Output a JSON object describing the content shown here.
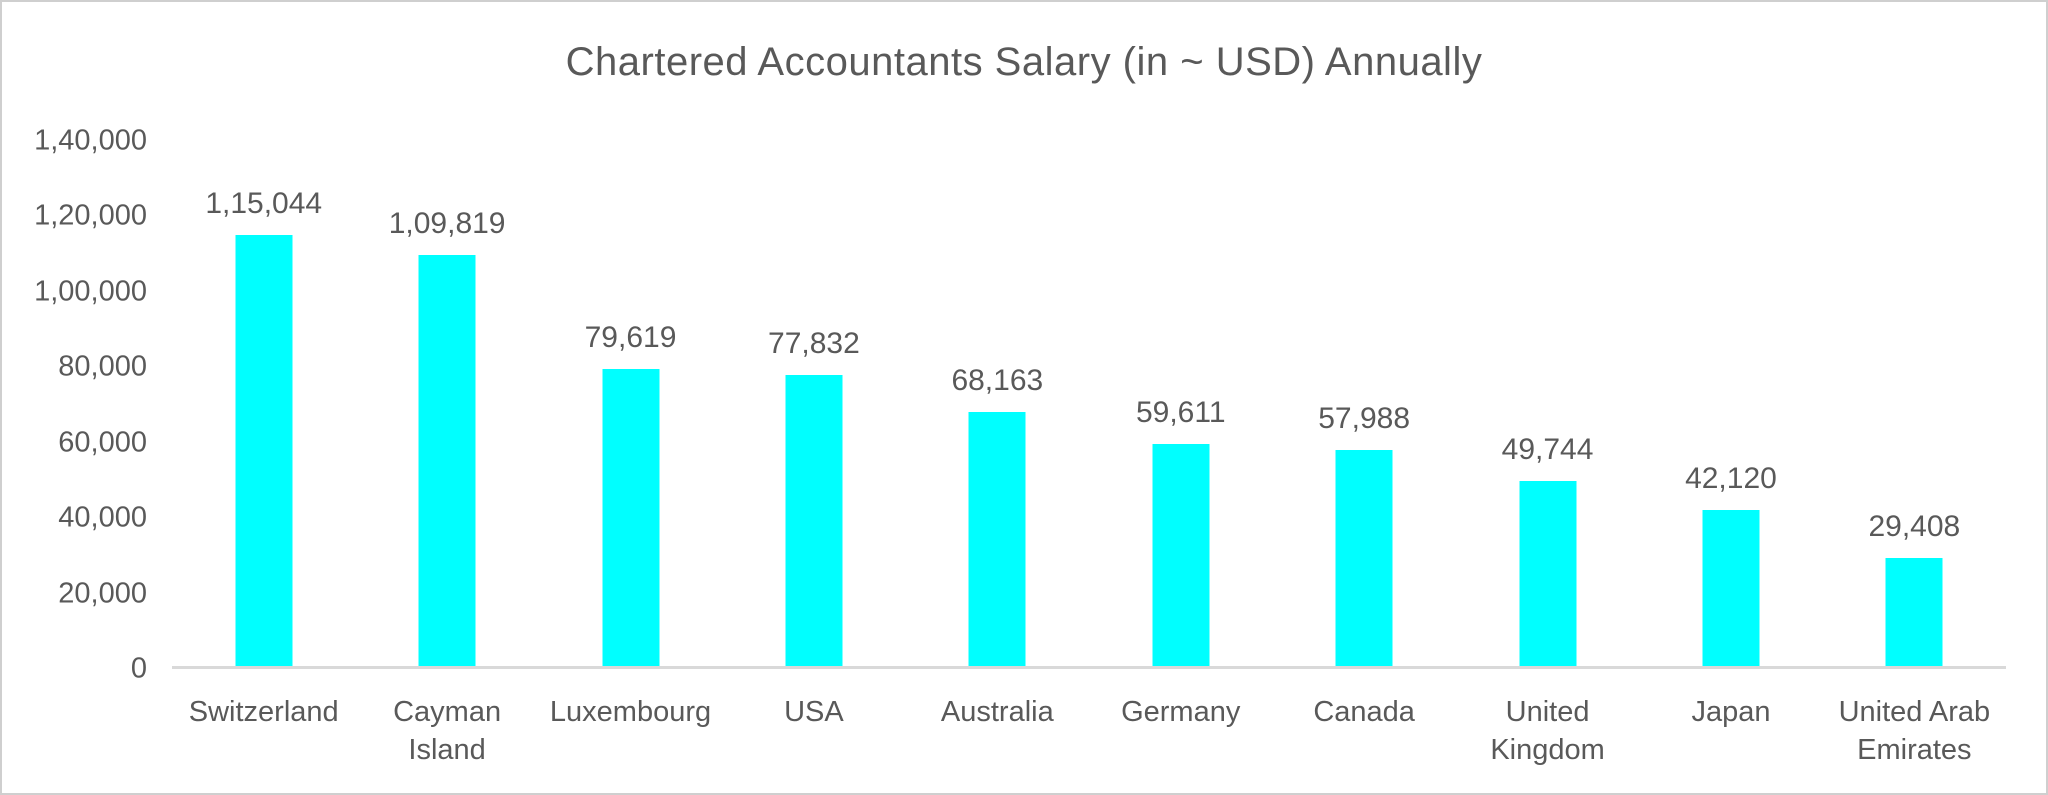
{
  "chart_data": {
    "type": "bar",
    "title": "Chartered Accountants Salary (in ~ USD) Annually",
    "categories": [
      "Switzerland",
      "Cayman Island",
      "Luxembourg",
      "USA",
      "Australia",
      "Germany",
      "Canada",
      "United Kingdom",
      "Japan",
      "United Arab Emirates"
    ],
    "values": [
      115044,
      109819,
      79619,
      77832,
      68163,
      59611,
      57988,
      49744,
      42120,
      29408
    ],
    "value_labels": [
      "1,15,044",
      "1,09,819",
      "79,619",
      "77,832",
      "68,163",
      "59,611",
      "57,988",
      "49,744",
      "42,120",
      "29,408"
    ],
    "xlabel": "",
    "ylabel": "",
    "ylim": [
      0,
      140000
    ],
    "y_ticks": [
      {
        "value": 0,
        "label": "0"
      },
      {
        "value": 20000,
        "label": "20,000"
      },
      {
        "value": 40000,
        "label": "40,000"
      },
      {
        "value": 60000,
        "label": "60,000"
      },
      {
        "value": 80000,
        "label": "80,000"
      },
      {
        "value": 100000,
        "label": "1,00,000"
      },
      {
        "value": 120000,
        "label": "1,20,000"
      },
      {
        "value": 140000,
        "label": "1,40,000"
      }
    ],
    "grid": false,
    "legend": false,
    "bar_color": "#00FFFF",
    "axis_line_color": "#D9D9D9",
    "text_color": "#595959",
    "frame_border_color": "#CFCFCF",
    "background_color": "#FFFFFF"
  }
}
